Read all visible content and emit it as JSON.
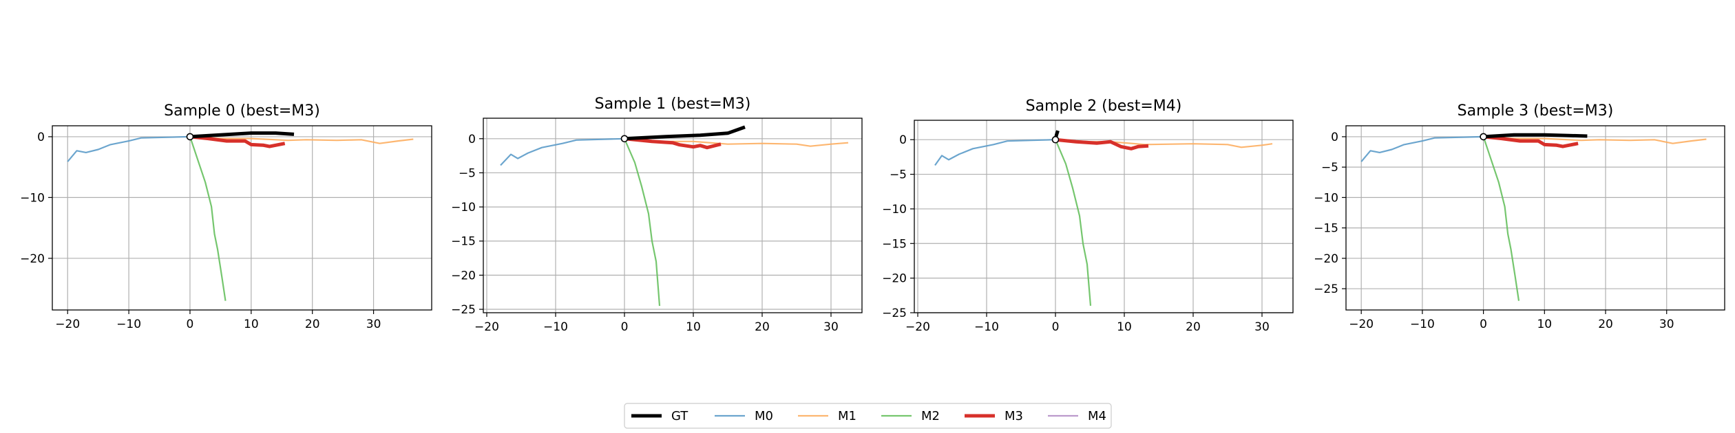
{
  "chart_data": [
    {
      "type": "line",
      "title": "Sample 0 (best=M3)",
      "xlim": [
        -22.5,
        39.5
      ],
      "ylim": [
        -28.5,
        1.8
      ],
      "xticks": [
        -20,
        -10,
        0,
        10,
        20,
        30
      ],
      "xtick_labels": [
        "−20",
        "−10",
        "0",
        "10",
        "20",
        "30"
      ],
      "yticks": [
        0,
        -10,
        -20
      ],
      "ytick_labels": [
        "0",
        "−10",
        "−20"
      ],
      "grid": true,
      "series": [
        {
          "name": "M0",
          "x": [
            0,
            -8,
            -10,
            -13,
            -15,
            -17,
            -18.5,
            -20
          ],
          "y": [
            0,
            -0.2,
            -0.7,
            -1.3,
            -2.1,
            -2.6,
            -2.3,
            -4.1
          ]
        },
        {
          "name": "M1",
          "x": [
            0,
            5,
            10,
            16,
            19,
            24,
            28,
            31,
            34,
            36.5
          ],
          "y": [
            0,
            -0.3,
            -0.3,
            -0.6,
            -0.5,
            -0.6,
            -0.5,
            -1.1,
            -0.7,
            -0.4
          ]
        },
        {
          "name": "M2",
          "x": [
            0,
            1.5,
            2.5,
            3.5,
            4,
            4.5,
            5.2,
            5.8
          ],
          "y": [
            0,
            -4.5,
            -7.5,
            -11.5,
            -16,
            -18.5,
            -23,
            -27
          ]
        },
        {
          "name": "M3",
          "x": [
            0,
            3,
            6,
            9,
            10,
            12,
            13,
            14,
            15.5
          ],
          "y": [
            0,
            -0.3,
            -0.7,
            -0.7,
            -1.3,
            -1.4,
            -1.6,
            -1.4,
            -1.1
          ]
        },
        {
          "name": "GT",
          "x": [
            0,
            5,
            10,
            14,
            17
          ],
          "y": [
            0,
            0.3,
            0.6,
            0.6,
            0.4
          ]
        }
      ]
    },
    {
      "type": "line",
      "title": "Sample 1 (best=M3)",
      "xlim": [
        -20.5,
        34.5
      ],
      "ylim": [
        -25.5,
        3.0
      ],
      "xticks": [
        -20,
        -10,
        0,
        10,
        20,
        30
      ],
      "xtick_labels": [
        "−20",
        "−10",
        "0",
        "10",
        "20",
        "30"
      ],
      "yticks": [
        0,
        -5,
        -10,
        -15,
        -20,
        -25
      ],
      "ytick_labels": [
        "0",
        "−5",
        "−10",
        "−15",
        "−20",
        "−25"
      ],
      "grid": true,
      "series": [
        {
          "name": "M0",
          "x": [
            0,
            -7,
            -9,
            -12,
            -14,
            -15.5,
            -16.5,
            -18
          ],
          "y": [
            0,
            -0.2,
            -0.7,
            -1.3,
            -2.1,
            -2.9,
            -2.3,
            -3.9
          ]
        },
        {
          "name": "M1",
          "x": [
            0,
            5,
            10,
            15,
            20,
            25,
            27,
            30,
            32.5
          ],
          "y": [
            0,
            -0.4,
            -0.4,
            -0.8,
            -0.7,
            -0.8,
            -1.1,
            -0.8,
            -0.6
          ]
        },
        {
          "name": "M2",
          "x": [
            0,
            1.5,
            2.5,
            3.5,
            4,
            4.6,
            5.1
          ],
          "y": [
            0,
            -3.5,
            -7,
            -11,
            -15,
            -18,
            -24.5
          ]
        },
        {
          "name": "M3",
          "x": [
            0,
            4,
            7,
            8,
            10,
            11,
            12,
            14
          ],
          "y": [
            0,
            -0.4,
            -0.6,
            -0.9,
            -1.2,
            -1.0,
            -1.3,
            -0.8
          ]
        },
        {
          "name": "GT",
          "x": [
            0,
            6,
            11,
            15,
            17.5
          ],
          "y": [
            0,
            0.3,
            0.5,
            0.8,
            1.7
          ]
        }
      ]
    },
    {
      "type": "line",
      "title": "Sample 2 (best=M4)",
      "xlim": [
        -20.5,
        34.5
      ],
      "ylim": [
        -25.0,
        2.8
      ],
      "xticks": [
        -20,
        -10,
        0,
        10,
        20,
        30
      ],
      "xtick_labels": [
        "−20",
        "−10",
        "0",
        "10",
        "20",
        "30"
      ],
      "yticks": [
        0,
        -5,
        -10,
        -15,
        -20,
        -25
      ],
      "ytick_labels": [
        "0",
        "−5",
        "−10",
        "−15",
        "−20",
        "−25"
      ],
      "grid": true,
      "series": [
        {
          "name": "M0",
          "x": [
            0,
            -7,
            -9,
            -12,
            -14,
            -15.5,
            -16.5,
            -17.5
          ],
          "y": [
            0,
            -0.2,
            -0.7,
            -1.3,
            -2.1,
            -2.9,
            -2.3,
            -3.7
          ]
        },
        {
          "name": "M1",
          "x": [
            0,
            5,
            8,
            13,
            20,
            25,
            27,
            30,
            31.5
          ],
          "y": [
            0,
            -0.3,
            -0.3,
            -0.7,
            -0.6,
            -0.7,
            -1.1,
            -0.8,
            -0.6
          ]
        },
        {
          "name": "M2",
          "x": [
            0,
            1.5,
            2.5,
            3.5,
            4,
            4.6,
            5.1
          ],
          "y": [
            0,
            -3.5,
            -7,
            -11,
            -15,
            -18,
            -24
          ]
        },
        {
          "name": "M3",
          "x": [
            0,
            3,
            6,
            8,
            9.5,
            11,
            12,
            13.5
          ],
          "y": [
            0,
            -0.3,
            -0.5,
            -0.3,
            -1.0,
            -1.3,
            -1.0,
            -0.9
          ]
        },
        {
          "name": "M4",
          "x": [
            0,
            0.2,
            0.3
          ],
          "y": [
            0,
            0.5,
            1.1
          ]
        },
        {
          "name": "GT",
          "x": [
            0,
            0.15,
            0.35
          ],
          "y": [
            0,
            0.7,
            1.3
          ]
        }
      ]
    },
    {
      "type": "line",
      "title": "Sample 3 (best=M3)",
      "xlim": [
        -22.5,
        39.5
      ],
      "ylim": [
        -28.5,
        1.8
      ],
      "xticks": [
        -20,
        -10,
        0,
        10,
        20,
        30
      ],
      "xtick_labels": [
        "−20",
        "−10",
        "0",
        "10",
        "20",
        "30"
      ],
      "yticks": [
        0,
        -5,
        -10,
        -15,
        -20,
        -25
      ],
      "ytick_labels": [
        "0",
        "−5",
        "−10",
        "−15",
        "−20",
        "−25"
      ],
      "grid": true,
      "series": [
        {
          "name": "M0",
          "x": [
            0,
            -8,
            -10,
            -13,
            -15,
            -17,
            -18.5,
            -20
          ],
          "y": [
            0,
            -0.2,
            -0.7,
            -1.3,
            -2.1,
            -2.6,
            -2.3,
            -4.1
          ]
        },
        {
          "name": "M1",
          "x": [
            0,
            5,
            10,
            16,
            19,
            24,
            28,
            31,
            34,
            36.5
          ],
          "y": [
            0,
            -0.3,
            -0.3,
            -0.6,
            -0.5,
            -0.6,
            -0.5,
            -1.1,
            -0.7,
            -0.4
          ]
        },
        {
          "name": "M2",
          "x": [
            0,
            1.5,
            2.5,
            3.5,
            4,
            4.5,
            5.2,
            5.8
          ],
          "y": [
            0,
            -4.5,
            -7.5,
            -11.5,
            -16,
            -18.5,
            -23,
            -27
          ]
        },
        {
          "name": "M3",
          "x": [
            0,
            3,
            6,
            9,
            10,
            12,
            13,
            14,
            15.5
          ],
          "y": [
            0,
            -0.3,
            -0.7,
            -0.7,
            -1.3,
            -1.4,
            -1.6,
            -1.4,
            -1.1
          ]
        },
        {
          "name": "GT",
          "x": [
            0,
            5,
            10,
            14,
            17
          ],
          "y": [
            0,
            0.3,
            0.3,
            0.2,
            0.1
          ]
        }
      ]
    }
  ],
  "legend": {
    "placement": "bottom-center",
    "entries": [
      {
        "label": "GT",
        "color": "#000000"
      },
      {
        "label": "M0",
        "color": "#5b9bc9"
      },
      {
        "label": "M1",
        "color": "#fdae61"
      },
      {
        "label": "M2",
        "color": "#66c05e"
      },
      {
        "label": "M3",
        "color": "#d7302a"
      },
      {
        "label": "M4",
        "color": "#b48fc6"
      }
    ]
  },
  "style": {
    "colors": {
      "GT": "#000000",
      "M0": "#5b9bc9",
      "M1": "#fdae61",
      "M2": "#66c05e",
      "M3": "#d7302a",
      "M4": "#b48fc6"
    }
  }
}
